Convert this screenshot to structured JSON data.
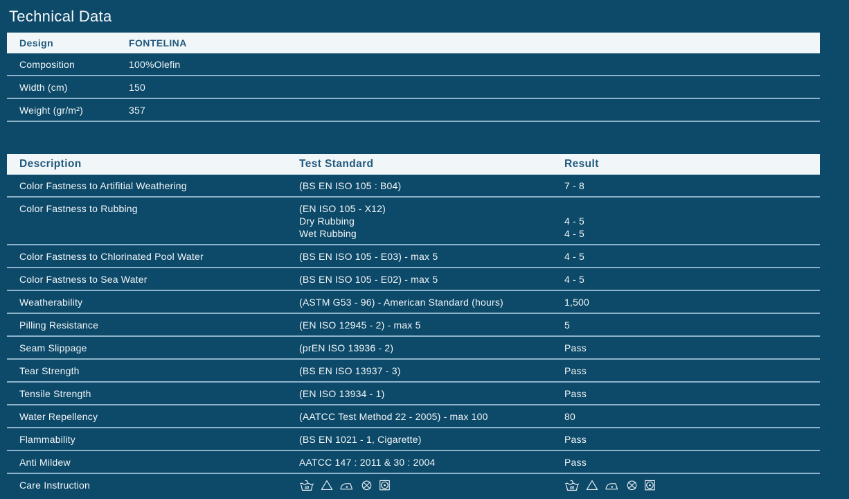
{
  "title": "Technical Data",
  "colors": {
    "background": "#0d4968",
    "header_bg": "#f1f6f9",
    "header_text": "#215a7d",
    "body_text": "#f2f7fa",
    "separator": "#8db4ca"
  },
  "spec_table": {
    "rows": [
      {
        "label": "Design",
        "value": "FONTELINA",
        "highlight": true
      },
      {
        "label": "Composition",
        "value": "100%Olefin",
        "highlight": false
      },
      {
        "label": "Width (cm)",
        "value": "150",
        "highlight": false
      },
      {
        "label": "Weight (gr/m²)",
        "value": "357",
        "highlight": false
      }
    ]
  },
  "test_table": {
    "headers": {
      "description": "Description",
      "standard": "Test Standard",
      "result": "Result"
    },
    "rows": [
      {
        "description": "Color Fastness to Artifitial Weathering",
        "standard_lines": [
          "(BS EN ISO 105 : B04)"
        ],
        "result_lines": [
          "7 - 8"
        ]
      },
      {
        "description": "Color Fastness to Rubbing",
        "standard_lines": [
          "(EN ISO 105 - X12)",
          "Dry Rubbing",
          "Wet Rubbing"
        ],
        "result_lines": [
          "",
          "4 - 5",
          "4 - 5"
        ]
      },
      {
        "description": "Color Fastness to Chlorinated Pool Water",
        "standard_lines": [
          "(BS EN ISO 105 - E03) - max 5"
        ],
        "result_lines": [
          "4 - 5"
        ]
      },
      {
        "description": "Color Fastness to Sea Water",
        "standard_lines": [
          "(BS EN ISO 105 - E02) - max 5"
        ],
        "result_lines": [
          "4 - 5"
        ]
      },
      {
        "description": "Weatherability",
        "standard_lines": [
          "(ASTM G53 - 96) - American Standard (hours)"
        ],
        "result_lines": [
          "1,500"
        ]
      },
      {
        "description": "Pilling Resistance",
        "standard_lines": [
          "(EN ISO 12945 - 2) - max 5"
        ],
        "result_lines": [
          "5"
        ]
      },
      {
        "description": "Seam Slippage",
        "standard_lines": [
          "(prEN ISO 13936 - 2)"
        ],
        "result_lines": [
          "Pass"
        ]
      },
      {
        "description": "Tear Strength",
        "standard_lines": [
          "(BS EN ISO 13937 - 3)"
        ],
        "result_lines": [
          "Pass"
        ]
      },
      {
        "description": "Tensile Strength",
        "standard_lines": [
          "(EN ISO 13934 - 1)"
        ],
        "result_lines": [
          "Pass"
        ]
      },
      {
        "description": "Water Repellency",
        "standard_lines": [
          "(AATCC Test Method 22 - 2005) - max 100"
        ],
        "result_lines": [
          "80"
        ]
      },
      {
        "description": "Flammability",
        "standard_lines": [
          "(BS EN 1021 - 1, Cigarette)"
        ],
        "result_lines": [
          "Pass"
        ]
      },
      {
        "description": "Anti Mildew",
        "standard_lines": [
          "AATCC 147 : 2011 & 30 : 2004"
        ],
        "result_lines": [
          "Pass"
        ]
      },
      {
        "description": "Care Instruction",
        "icons": true
      }
    ]
  },
  "care": {
    "handwash_temp": "40",
    "icon_names": [
      "handwash-40-icon",
      "bleach-triangle-icon",
      "iron-icon",
      "do-not-dryclean-icon",
      "tumble-dry-icon"
    ]
  }
}
